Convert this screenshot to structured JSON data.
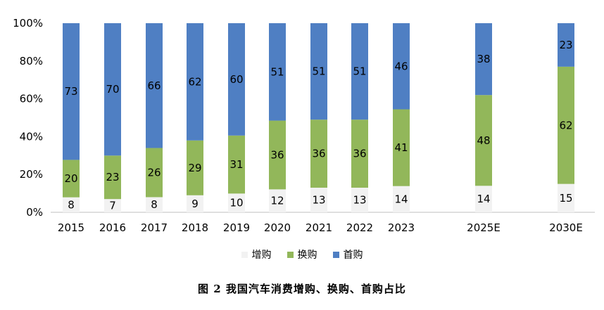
{
  "chart_data": {
    "type": "bar",
    "stacked": true,
    "normalized": true,
    "categories": [
      "2015",
      "2016",
      "2017",
      "2018",
      "2019",
      "2020",
      "2021",
      "2022",
      "2023",
      "2025E",
      "2030E"
    ],
    "series": [
      {
        "name": "增购",
        "color": "#f2f2f2",
        "values": [
          8,
          7,
          8,
          9,
          10,
          12,
          13,
          13,
          14,
          14,
          15
        ]
      },
      {
        "name": "换购",
        "color": "#92b75a",
        "values": [
          20,
          23,
          26,
          29,
          31,
          36,
          36,
          36,
          41,
          48,
          62
        ]
      },
      {
        "name": "首购",
        "color": "#4f7fc3",
        "values": [
          73,
          70,
          66,
          62,
          60,
          51,
          51,
          51,
          46,
          38,
          23
        ]
      }
    ],
    "yticks": [
      "0%",
      "20%",
      "40%",
      "60%",
      "80%",
      "100%"
    ],
    "ylim": [
      0,
      100
    ],
    "legend_position": "bottom-center",
    "grid": false
  },
  "caption": "图 2  我国汽车消费增购、换购、首购占比"
}
